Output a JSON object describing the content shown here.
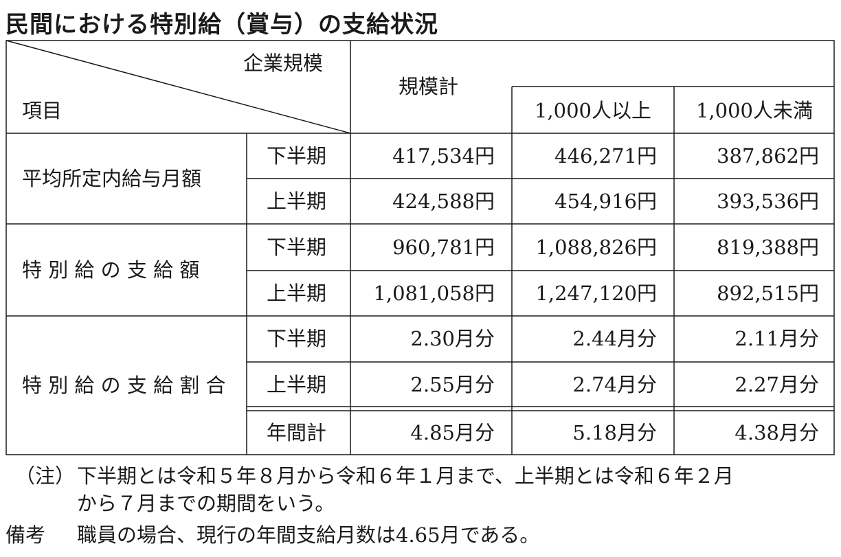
{
  "title": "民間における特別給（賞与）の支給状況",
  "header": {
    "scale_label": "企業規模",
    "item_label": "項目",
    "total_label": "規模計",
    "large_label": "1,000人以上",
    "small_label": "1,000人未満"
  },
  "groups": [
    {
      "label": "平均所定内給与月額",
      "rows": [
        {
          "period": "下半期",
          "total": "417,534円",
          "large": "446,271円",
          "small": "387,862円"
        },
        {
          "period": "上半期",
          "total": "424,588円",
          "large": "454,916円",
          "small": "393,536円"
        }
      ]
    },
    {
      "label": "特 別 給 の 支 給 額",
      "rows": [
        {
          "period": "下半期",
          "total": "960,781円",
          "large": "1,088,826円",
          "small": "819,388円"
        },
        {
          "period": "上半期",
          "total": "1,081,058円",
          "large": "1,247,120円",
          "small": "892,515円"
        }
      ]
    },
    {
      "label": "特 別 給 の 支 給 割 合",
      "rows": [
        {
          "period": "下半期",
          "total": "2.30月分",
          "large": "2.44月分",
          "small": "2.11月分"
        },
        {
          "period": "上半期",
          "total": "2.55月分",
          "large": "2.74月分",
          "small": "2.27月分"
        },
        {
          "period": "年間計",
          "total": "4.85月分",
          "large": "5.18月分",
          "small": "4.38月分"
        }
      ]
    }
  ],
  "notes": {
    "note_label": "（注）",
    "note_line1": "下半期とは令和５年８月から令和６年１月まで、上半期とは令和６年２月",
    "note_line2": "から７月までの期間をいう。",
    "remark_label": "備考",
    "remark_text": "職員の場合、現行の年間支給月数は4.65月である。"
  }
}
